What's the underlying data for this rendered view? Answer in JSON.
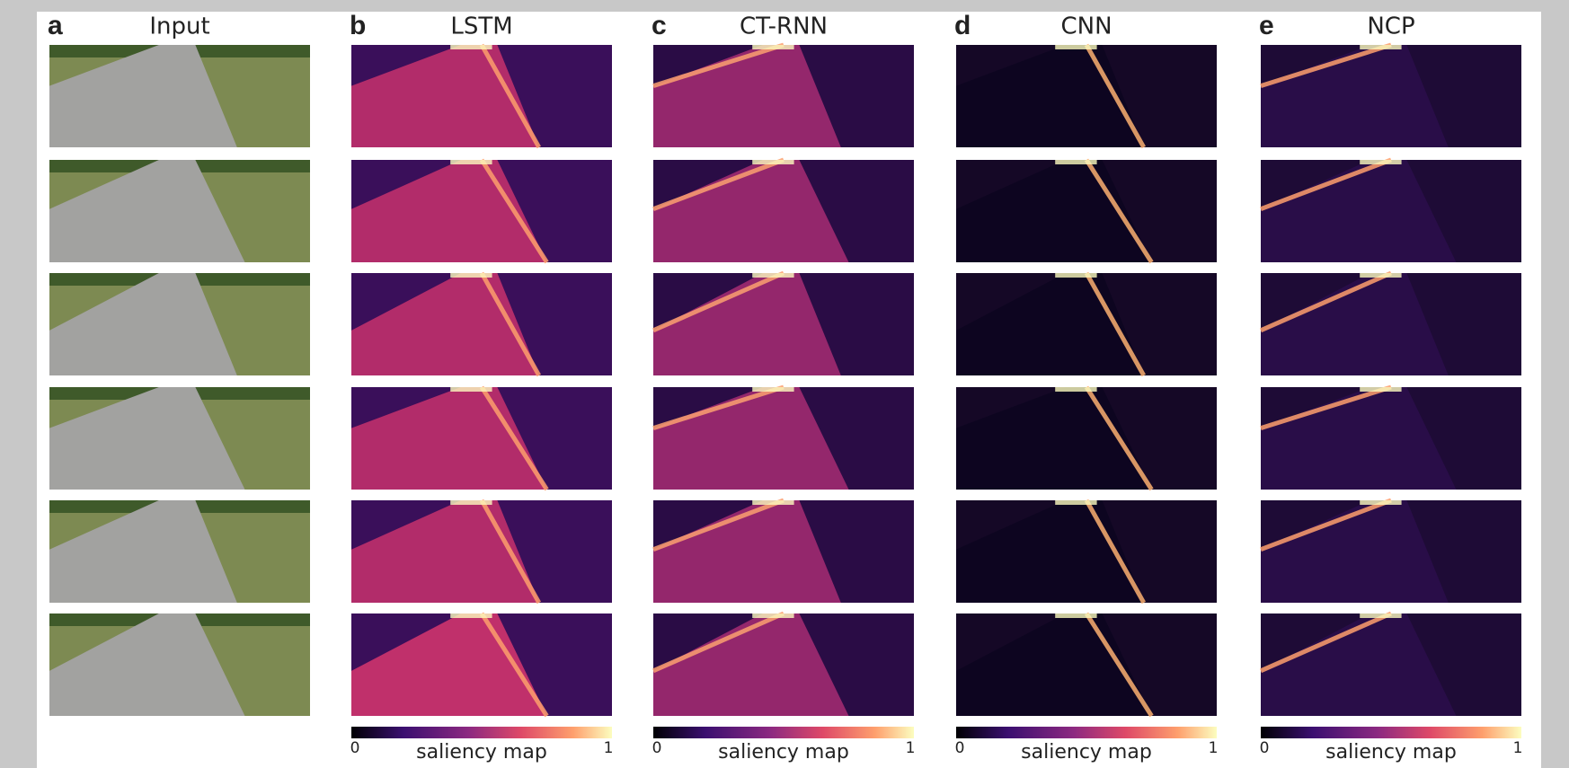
{
  "panels": [
    {
      "letter": "a",
      "title": "Input"
    },
    {
      "letter": "b",
      "title": "LSTM",
      "colorbar": {
        "min": 0,
        "label": "saliency map",
        "max": 1
      }
    },
    {
      "letter": "c",
      "title": "CT-RNN",
      "colorbar": {
        "min": 0,
        "label": "saliency map",
        "max": 1
      }
    },
    {
      "letter": "d",
      "title": "CNN",
      "colorbar": {
        "min": 0,
        "label": "saliency map",
        "max": 1
      }
    },
    {
      "letter": "e",
      "title": "NCP",
      "colorbar": {
        "min": 0,
        "label": "saliency map",
        "max": 1
      }
    }
  ]
}
